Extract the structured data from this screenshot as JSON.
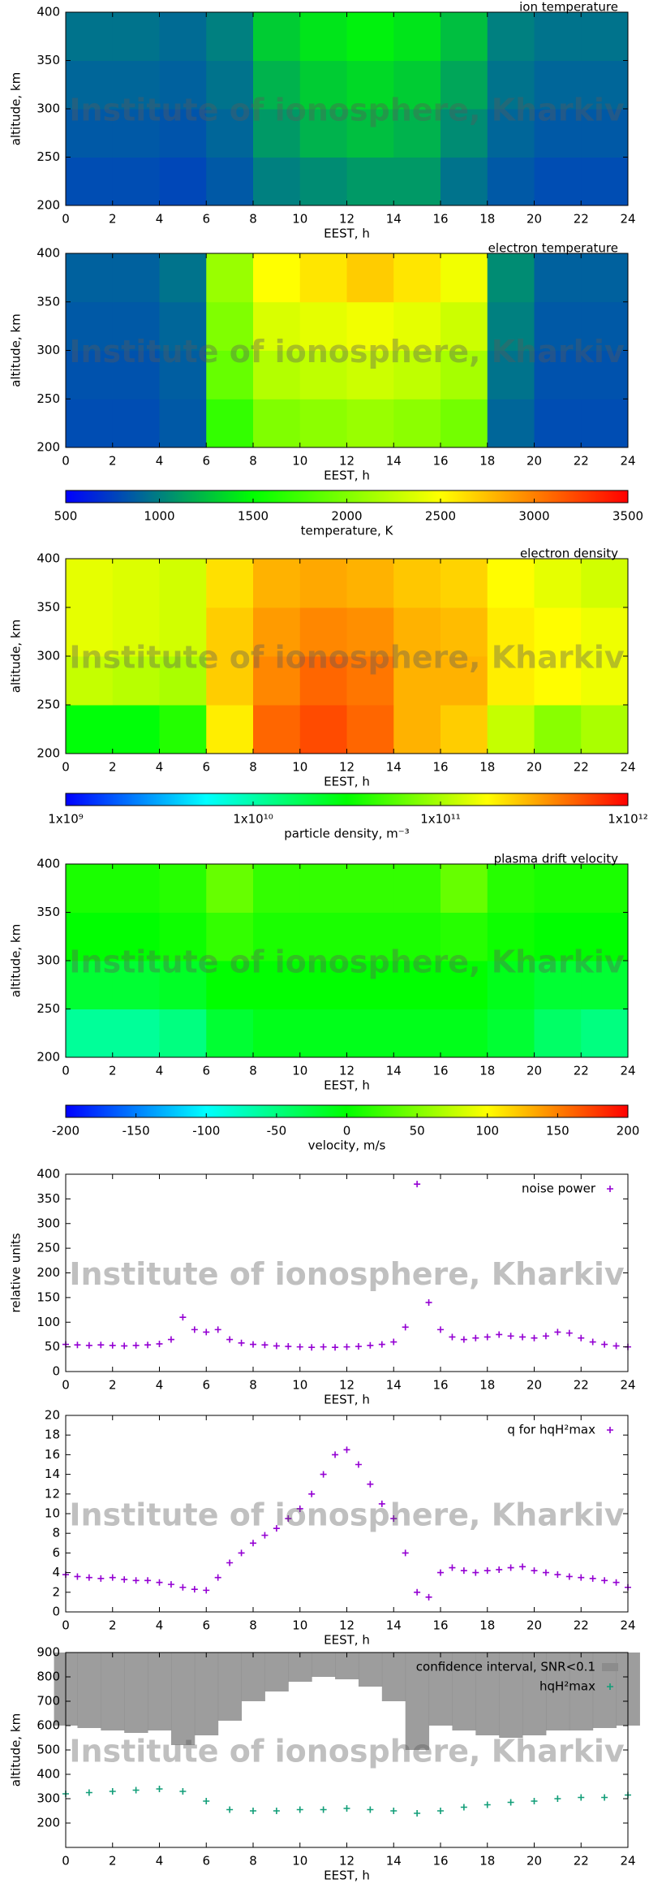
{
  "chart_data": [
    {
      "type": "heatmap",
      "title": "ion temperature",
      "watermark": "Institute of ionosphere, Kharkiv",
      "xlabel": "EEST, h",
      "ylabel": "altitude, km",
      "xlim": [
        0,
        24
      ],
      "xticks": [
        0,
        2,
        4,
        6,
        8,
        10,
        12,
        14,
        16,
        18,
        20,
        22,
        24
      ],
      "ylim": [
        200,
        400
      ],
      "yticks": [
        200,
        250,
        300,
        350,
        400
      ],
      "x": [
        1,
        3,
        5,
        7,
        9,
        11,
        13,
        15,
        17,
        19,
        21,
        23
      ],
      "y": [
        225,
        275,
        325,
        375
      ],
      "z": [
        [
          800,
          800,
          780,
          850,
          1000,
          1050,
          1100,
          1100,
          950,
          850,
          800,
          800
        ],
        [
          850,
          850,
          830,
          900,
          1100,
          1200,
          1250,
          1200,
          1050,
          900,
          850,
          850
        ],
        [
          900,
          900,
          880,
          950,
          1200,
          1300,
          1350,
          1300,
          1150,
          950,
          900,
          900
        ],
        [
          950,
          950,
          920,
          1000,
          1300,
          1400,
          1450,
          1400,
          1250,
          1000,
          950,
          950
        ]
      ],
      "zlim": [
        500,
        3500
      ],
      "colorscale": [
        "#0000ff",
        "#00ff00",
        "#ffff00",
        "#ff0000"
      ]
    },
    {
      "type": "heatmap",
      "title": "electron temperature",
      "watermark": "Institute of ionosphere, Kharkiv",
      "xlabel": "EEST, h",
      "ylabel": "altitude, km",
      "xlim": [
        0,
        24
      ],
      "xticks": [
        0,
        2,
        4,
        6,
        8,
        10,
        12,
        14,
        16,
        18,
        20,
        22,
        24
      ],
      "ylim": [
        200,
        400
      ],
      "yticks": [
        200,
        250,
        300,
        350,
        400
      ],
      "x": [
        1,
        3,
        5,
        7,
        9,
        11,
        13,
        15,
        17,
        19,
        21,
        23
      ],
      "y": [
        225,
        275,
        325,
        375
      ],
      "z": [
        [
          800,
          800,
          850,
          1700,
          2000,
          2050,
          2100,
          2050,
          1950,
          900,
          800,
          800
        ],
        [
          820,
          820,
          870,
          1900,
          2200,
          2250,
          2300,
          2250,
          2150,
          950,
          820,
          820
        ],
        [
          850,
          850,
          900,
          2000,
          2350,
          2400,
          2450,
          2400,
          2300,
          1000,
          850,
          850
        ],
        [
          880,
          880,
          950,
          2100,
          2500,
          2600,
          2700,
          2600,
          2450,
          1050,
          880,
          880
        ]
      ],
      "zlim": [
        500,
        3500
      ],
      "colorscale": [
        "#0000ff",
        "#00ff00",
        "#ffff00",
        "#ff0000"
      ],
      "colorbar": true,
      "zticks": [
        500,
        1000,
        1500,
        2000,
        2500,
        3000,
        3500
      ],
      "zlabel": "temperature, K"
    },
    {
      "type": "heatmap",
      "title": "electron density",
      "watermark": "Institute of ionosphere, Kharkiv",
      "xlabel": "EEST, h",
      "ylabel": "altitude, km",
      "xlim": [
        0,
        24
      ],
      "xticks": [
        0,
        2,
        4,
        6,
        8,
        10,
        12,
        14,
        16,
        18,
        20,
        22,
        24
      ],
      "ylim": [
        200,
        400
      ],
      "yticks": [
        200,
        250,
        300,
        350,
        400
      ],
      "x": [
        1,
        3,
        5,
        7,
        9,
        11,
        13,
        15,
        17,
        19,
        21,
        23
      ],
      "y": [
        225,
        275,
        325,
        375
      ],
      "z": [
        [
          30000000000.0,
          30000000000.0,
          40000000000.0,
          200000000000.0,
          500000000000.0,
          600000000000.0,
          500000000000.0,
          300000000000.0,
          250000000000.0,
          120000000000.0,
          80000000000.0,
          100000000000.0
        ],
        [
          120000000000.0,
          110000000000.0,
          100000000000.0,
          250000000000.0,
          400000000000.0,
          500000000000.0,
          450000000000.0,
          300000000000.0,
          300000000000.0,
          200000000000.0,
          180000000000.0,
          160000000000.0
        ],
        [
          150000000000.0,
          140000000000.0,
          130000000000.0,
          250000000000.0,
          350000000000.0,
          400000000000.0,
          380000000000.0,
          300000000000.0,
          280000000000.0,
          200000000000.0,
          180000000000.0,
          160000000000.0
        ],
        [
          150000000000.0,
          140000000000.0,
          130000000000.0,
          220000000000.0,
          300000000000.0,
          320000000000.0,
          300000000000.0,
          260000000000.0,
          240000000000.0,
          180000000000.0,
          150000000000.0,
          130000000000.0
        ]
      ],
      "zlim": [
        1000000000.0,
        1000000000000.0
      ],
      "zlog": true,
      "colorscale": [
        "#0000ff",
        "#00ffff",
        "#00ff00",
        "#ffff00",
        "#ff0000"
      ],
      "colorbar": true,
      "zticks": [
        {
          "value": 1000000000.0,
          "label": "1x10⁹"
        },
        {
          "value": 10000000000.0,
          "label": "1x10¹⁰"
        },
        {
          "value": 100000000000.0,
          "label": "1x10¹¹"
        },
        {
          "value": 1000000000000.0,
          "label": "1x10¹²"
        }
      ],
      "zlabel": "particle density, m⁻³"
    },
    {
      "type": "heatmap",
      "title": "plasma drift velocity",
      "watermark": "Institute of ionosphere, Kharkiv",
      "xlabel": "EEST, h",
      "ylabel": "altitude, km",
      "xlim": [
        0,
        24
      ],
      "xticks": [
        0,
        2,
        4,
        6,
        8,
        10,
        12,
        14,
        16,
        18,
        20,
        22,
        24
      ],
      "ylim": [
        200,
        400
      ],
      "yticks": [
        200,
        250,
        300,
        350,
        400
      ],
      "x": [
        1,
        3,
        5,
        7,
        9,
        11,
        13,
        15,
        17,
        19,
        21,
        23
      ],
      "y": [
        225,
        275,
        325,
        375
      ],
      "z": [
        [
          -60,
          -60,
          -50,
          -20,
          -10,
          -10,
          -10,
          -10,
          -10,
          -20,
          -40,
          -50
        ],
        [
          -20,
          -20,
          -15,
          0,
          0,
          0,
          0,
          0,
          0,
          -10,
          -20,
          -20
        ],
        [
          0,
          0,
          5,
          20,
          10,
          10,
          10,
          10,
          15,
          5,
          0,
          0
        ],
        [
          10,
          10,
          15,
          40,
          20,
          20,
          20,
          20,
          40,
          15,
          10,
          10
        ]
      ],
      "zlim": [
        -200,
        200
      ],
      "colorscale": [
        "#0000ff",
        "#00ffff",
        "#00ff00",
        "#ffff00",
        "#ff0000"
      ],
      "colorbar": true,
      "zticks": [
        -200,
        -150,
        -100,
        -50,
        0,
        50,
        100,
        150,
        200
      ],
      "zlabel": "velocity, m/s"
    },
    {
      "type": "scatter",
      "watermark": "Institute of ionosphere, Kharkiv",
      "xlabel": "EEST, h",
      "ylabel": "relative units",
      "xlim": [
        0,
        24
      ],
      "xticks": [
        0,
        2,
        4,
        6,
        8,
        10,
        12,
        14,
        16,
        18,
        20,
        22,
        24
      ],
      "ylim": [
        0,
        400
      ],
      "yticks": [
        0,
        50,
        100,
        150,
        200,
        250,
        300,
        350,
        400
      ],
      "x": [
        0,
        0.5,
        1,
        1.5,
        2,
        2.5,
        3,
        3.5,
        4,
        4.5,
        5,
        5.5,
        6,
        6.5,
        7,
        7.5,
        8,
        8.5,
        9,
        9.5,
        10,
        10.5,
        11,
        11.5,
        12,
        12.5,
        13,
        13.5,
        14,
        14.5,
        15,
        15.5,
        16,
        16.5,
        17,
        17.5,
        18,
        18.5,
        19,
        19.5,
        20,
        20.5,
        21,
        21.5,
        22,
        22.5,
        23,
        23.5,
        24
      ],
      "series": [
        {
          "name": "noise power",
          "color": "#9400d3",
          "mark": "plus",
          "values": [
            55,
            54,
            53,
            54,
            53,
            52,
            53,
            54,
            56,
            65,
            110,
            85,
            80,
            85,
            65,
            58,
            55,
            54,
            52,
            51,
            50,
            49,
            50,
            49,
            50,
            51,
            53,
            55,
            60,
            90,
            380,
            140,
            85,
            70,
            65,
            68,
            70,
            75,
            72,
            70,
            68,
            72,
            80,
            78,
            68,
            60,
            55,
            52,
            50
          ]
        }
      ]
    },
    {
      "type": "scatter",
      "watermark": "Institute of ionosphere, Kharkiv",
      "xlabel": "EEST, h",
      "xlim": [
        0,
        24
      ],
      "xticks": [
        0,
        2,
        4,
        6,
        8,
        10,
        12,
        14,
        16,
        18,
        20,
        22,
        24
      ],
      "ylim": [
        0,
        20
      ],
      "yticks": [
        0,
        2,
        4,
        6,
        8,
        10,
        12,
        14,
        16,
        18,
        20
      ],
      "x": [
        0,
        0.5,
        1,
        1.5,
        2,
        2.5,
        3,
        3.5,
        4,
        4.5,
        5,
        5.5,
        6,
        6.5,
        7,
        7.5,
        8,
        8.5,
        9,
        9.5,
        10,
        10.5,
        11,
        11.5,
        12,
        12.5,
        13,
        13.5,
        14,
        14.5,
        15,
        15.5,
        16,
        16.5,
        17,
        17.5,
        18,
        18.5,
        19,
        19.5,
        20,
        20.5,
        21,
        21.5,
        22,
        22.5,
        23,
        23.5,
        24
      ],
      "series": [
        {
          "name": "q for hqH²max",
          "color": "#9400d3",
          "mark": "plus",
          "values": [
            3.8,
            3.6,
            3.5,
            3.4,
            3.5,
            3.3,
            3.2,
            3.2,
            3.0,
            2.8,
            2.5,
            2.3,
            2.2,
            3.5,
            5,
            6,
            7,
            7.8,
            8.5,
            9.5,
            10.5,
            12,
            14,
            16,
            16.5,
            15,
            13,
            11,
            9.5,
            6,
            2,
            1.5,
            4,
            4.5,
            4.2,
            4,
            4.2,
            4.3,
            4.5,
            4.6,
            4.2,
            4,
            3.8,
            3.6,
            3.5,
            3.4,
            3.2,
            3,
            2.5
          ]
        }
      ]
    },
    {
      "type": "scatter",
      "watermark": "Institute of ionosphere, Kharkiv",
      "xlabel": "EEST, h",
      "ylabel": "altitude, km",
      "xlim": [
        0,
        24
      ],
      "xticks": [
        0,
        2,
        4,
        6,
        8,
        10,
        12,
        14,
        16,
        18,
        20,
        22,
        24
      ],
      "ylim": [
        100,
        900
      ],
      "yticks": [
        200,
        300,
        400,
        500,
        600,
        700,
        800,
        900
      ],
      "x": [
        0,
        1,
        2,
        3,
        4,
        5,
        6,
        7,
        8,
        9,
        10,
        11,
        12,
        13,
        14,
        15,
        16,
        17,
        18,
        19,
        20,
        21,
        22,
        23,
        24
      ],
      "series": [
        {
          "name": "confidence interval, SNR<0.1",
          "color": "#8c8c8c",
          "mark": "bar",
          "values": [
            600,
            590,
            580,
            570,
            580,
            520,
            560,
            620,
            700,
            740,
            780,
            800,
            790,
            760,
            700,
            500,
            600,
            580,
            560,
            550,
            560,
            580,
            580,
            590,
            600
          ]
        },
        {
          "name": "hqH²max",
          "color": "#119e78",
          "mark": "plus",
          "values": [
            320,
            325,
            330,
            335,
            340,
            330,
            290,
            255,
            250,
            250,
            255,
            255,
            260,
            255,
            250,
            240,
            250,
            265,
            275,
            285,
            290,
            300,
            305,
            305,
            315
          ]
        }
      ]
    }
  ]
}
